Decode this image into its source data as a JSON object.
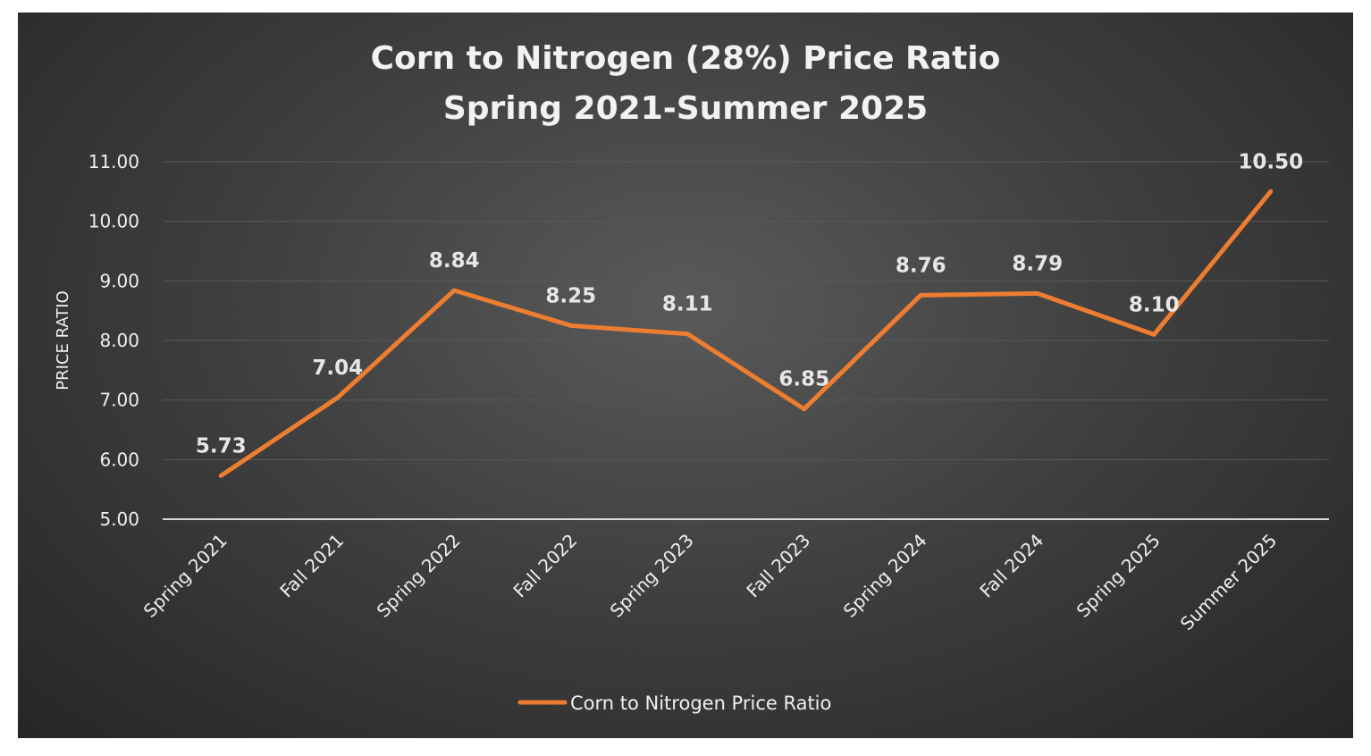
{
  "chart_data": {
    "type": "line",
    "title": "Corn to Nitrogen (28%) Price Ratio",
    "subtitle": "Spring 2021-Summer 2025",
    "xlabel": "",
    "ylabel": "PRICE RATIO",
    "categories": [
      "Spring 2021",
      "Fall 2021",
      "Spring 2022",
      "Fall 2022",
      "Spring 2023",
      "Fall 2023",
      "Spring 2024",
      "Fall 2024",
      "Spring 2025",
      "Summer 2025"
    ],
    "series": [
      {
        "name": "Corn to Nitrogen Price Ratio",
        "values": [
          5.73,
          7.04,
          8.84,
          8.25,
          8.11,
          6.85,
          8.76,
          8.79,
          8.1,
          10.5
        ],
        "labels": [
          "5.73",
          "7.04",
          "8.84",
          "8.25",
          "8.11",
          "6.85",
          "8.76",
          "8.79",
          "8.10",
          "10.50"
        ],
        "color": "#ed7d31"
      }
    ],
    "ylim": [
      5,
      11
    ],
    "yticks": [
      "5.00",
      "6.00",
      "7.00",
      "8.00",
      "9.00",
      "10.00",
      "11.00"
    ],
    "grid": true,
    "legend": "bottom",
    "colors": {
      "background": "#404040",
      "gridline": "#595959",
      "baseline": "#d9d9d9",
      "text": "#f0f0f0"
    }
  }
}
